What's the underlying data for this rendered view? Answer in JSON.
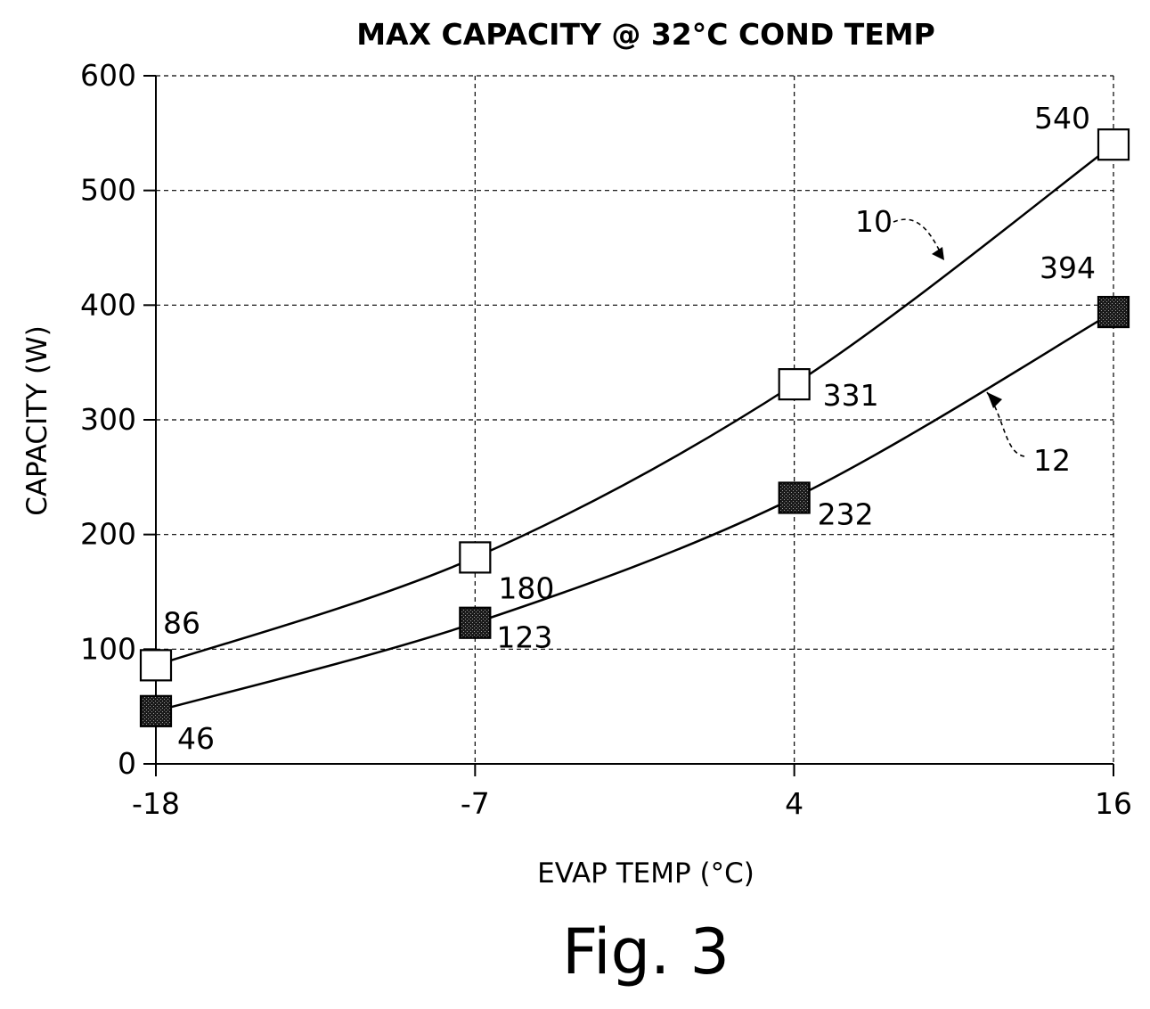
{
  "figure_label": "Fig. 3",
  "chart_data": {
    "type": "line",
    "title": "MAX CAPACITY @ 32°C COND TEMP",
    "xlabel": "EVAP TEMP (°C)",
    "ylabel": "CAPACITY (W)",
    "categories": [
      "-18",
      "-7",
      "4",
      "16"
    ],
    "ylim": [
      0,
      600
    ],
    "yticks": [
      0,
      100,
      200,
      300,
      400,
      500,
      600
    ],
    "grid": true,
    "series": [
      {
        "ref": "10",
        "marker": "open-square",
        "values": [
          86,
          180,
          331,
          540
        ],
        "labels": [
          "86",
          "180",
          "331",
          "540"
        ]
      },
      {
        "ref": "12",
        "marker": "filled-square",
        "values": [
          46,
          123,
          232,
          394
        ],
        "labels": [
          "46",
          "123",
          "232",
          "394"
        ]
      }
    ]
  }
}
